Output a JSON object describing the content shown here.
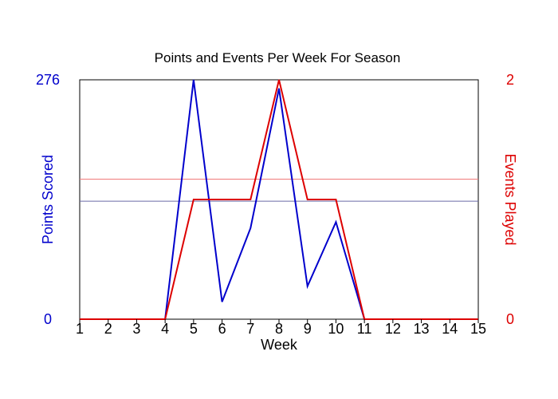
{
  "chart_data": {
    "type": "line",
    "title": "Points and Events Per Week For Season",
    "xlabel": "Week",
    "ylabel_left": "Points Scored",
    "ylabel_right": "Events Played",
    "x": [
      1,
      2,
      3,
      4,
      5,
      6,
      7,
      8,
      9,
      10,
      11,
      12,
      13,
      14,
      15
    ],
    "ylim_left": [
      0,
      276
    ],
    "ylim_right": [
      0,
      2
    ],
    "left_ticks": [
      "0",
      "276"
    ],
    "right_ticks": [
      "0",
      "2"
    ],
    "grid": false,
    "colors": {
      "points": "#0000cc",
      "events": "#dd0000",
      "points_ref": "#6a6aa8",
      "events_ref": "#f07a7a"
    },
    "series": [
      {
        "axis": "left",
        "values": [
          0,
          0,
          0,
          0,
          276,
          20,
          105,
          266,
          38,
          112,
          0,
          0,
          0,
          0,
          0
        ]
      },
      {
        "axis": "right",
        "values": [
          0,
          0,
          0,
          0,
          1,
          1,
          1,
          2,
          1,
          1,
          0,
          0,
          0,
          0,
          0
        ]
      }
    ],
    "reference_lines": [
      {
        "axis": "left",
        "value": 136
      },
      {
        "axis": "right",
        "value": 1.17
      }
    ]
  }
}
